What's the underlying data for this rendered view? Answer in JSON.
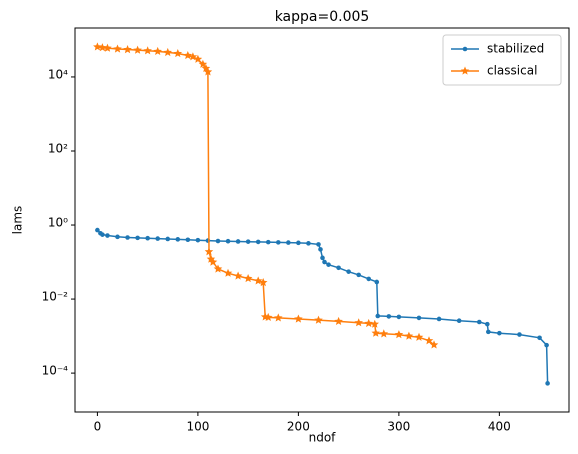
{
  "chart_data": {
    "type": "line",
    "title": "kappa=0.005",
    "x_label": "ndof",
    "y_label": "lams",
    "log_y": true,
    "legend": "upper right",
    "xlim": [
      -22.3,
      469.3
    ],
    "ylim": [
      8.9e-06,
      210000
    ],
    "xticks": [
      0,
      100,
      200,
      300,
      400
    ],
    "yticks": [
      {
        "value": 0.0001,
        "label": "10⁻⁴"
      },
      {
        "value": 0.01,
        "label": "10⁻²"
      },
      {
        "value": 1,
        "label": "10⁰"
      },
      {
        "value": 100,
        "label": "10²"
      },
      {
        "value": 10000,
        "label": "10⁴"
      }
    ],
    "series": [
      {
        "name": "stabilized",
        "color": "#1f77b4",
        "marker": "circle",
        "x": [
          0,
          3,
          5,
          10,
          20,
          30,
          40,
          50,
          60,
          70,
          80,
          90,
          100,
          110,
          120,
          130,
          140,
          150,
          160,
          170,
          180,
          190,
          200,
          210,
          220,
          222,
          224,
          226,
          230,
          240,
          250,
          260,
          270,
          278,
          279,
          290,
          300,
          320,
          340,
          360,
          380,
          388,
          389,
          400,
          420,
          440,
          447,
          448
        ],
        "values": [
          0.73,
          0.6,
          0.55,
          0.52,
          0.48,
          0.46,
          0.45,
          0.44,
          0.43,
          0.42,
          0.41,
          0.4,
          0.39,
          0.38,
          0.37,
          0.365,
          0.36,
          0.355,
          0.35,
          0.345,
          0.34,
          0.335,
          0.33,
          0.32,
          0.3,
          0.22,
          0.13,
          0.1,
          0.085,
          0.07,
          0.055,
          0.045,
          0.035,
          0.029,
          0.0035,
          0.0034,
          0.0033,
          0.0031,
          0.0029,
          0.0026,
          0.0024,
          0.0021,
          0.0013,
          0.0012,
          0.0011,
          0.0009,
          0.00057,
          5.3e-05
        ]
      },
      {
        "name": "classical",
        "color": "#ff7f0e",
        "marker": "star",
        "x": [
          0,
          5,
          10,
          20,
          30,
          40,
          50,
          60,
          70,
          80,
          90,
          95,
          100,
          105,
          108,
          110,
          111,
          113,
          115,
          120,
          130,
          140,
          150,
          160,
          165,
          167,
          170,
          180,
          200,
          220,
          240,
          260,
          270,
          276,
          277,
          285,
          300,
          310,
          320,
          330,
          335
        ],
        "values": [
          65000,
          62000,
          60000,
          57000,
          55000,
          53000,
          51000,
          49000,
          46000,
          43000,
          38000,
          35000,
          30000,
          22000,
          17000,
          13700,
          0.19,
          0.12,
          0.1,
          0.065,
          0.05,
          0.042,
          0.036,
          0.031,
          0.028,
          0.0033,
          0.0032,
          0.0031,
          0.0029,
          0.0027,
          0.0025,
          0.0023,
          0.0022,
          0.0021,
          0.0012,
          0.00115,
          0.0011,
          0.001,
          0.00093,
          0.00075,
          0.00058
        ]
      }
    ]
  }
}
